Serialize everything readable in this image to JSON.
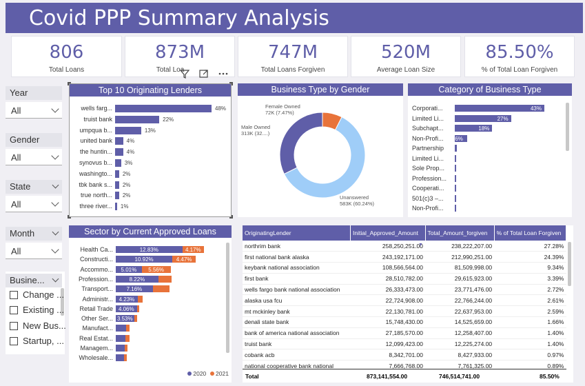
{
  "header": {
    "title": "Covid PPP Summary Analysis"
  },
  "kpis": [
    {
      "value": "806",
      "label": "Total Loans"
    },
    {
      "value": "873M",
      "label": "Total Loa"
    },
    {
      "value": "747M",
      "label": "Total Loans Forgiven"
    },
    {
      "value": "520M",
      "label": "Average Loan Size"
    },
    {
      "value": "85.50%",
      "label": "% of Total Loan Forgiven"
    }
  ],
  "slicers": {
    "year": {
      "title": "Year",
      "value": "All"
    },
    "gender": {
      "title": "Gender",
      "value": "All"
    },
    "state": {
      "title": "State",
      "value": "All"
    },
    "month": {
      "title": "Month",
      "value": "All"
    },
    "business": {
      "title": "Busine...",
      "options": [
        "Change ...",
        "Existing ...",
        "New Bus...",
        "Startup, ..."
      ]
    }
  },
  "visual_header": {
    "filter_icon": "filter-icon",
    "focus_icon": "focus-mode-icon",
    "more_icon": "more-options-icon"
  },
  "colors": {
    "primary": "#5f5ea8",
    "orange": "#e8733a",
    "light_blue": "#9fcdf8"
  },
  "charts": {
    "top_lenders": {
      "title": "Top 10 Originating Lenders",
      "chart_data": {
        "type": "bar",
        "categories": [
          "wells farg...",
          "truist bank",
          "umpqua b...",
          "united bank",
          "the huntin...",
          "synovus b...",
          "washingto...",
          "tbk bank s...",
          "true north...",
          "three river..."
        ],
        "values": [
          48,
          22,
          13,
          4,
          4,
          3,
          2,
          2,
          2,
          1
        ],
        "labels": [
          "48%",
          "22%",
          "13%",
          "4%",
          "4%",
          "3%",
          "2%",
          "2%",
          "2%",
          "1%"
        ]
      }
    },
    "gender_donut": {
      "title": "Business Type by Gender",
      "chart_data": {
        "type": "pie",
        "categories": [
          "Unanswered",
          "Male Owned",
          "Female Owned"
        ],
        "values": [
          60.24,
          32.29,
          7.47
        ],
        "labels": [
          [
            "Unanswered",
            "583K (60.24%)"
          ],
          [
            "Male Owned",
            "313K (32....)"
          ],
          [
            "Female Owned",
            "72K (7.47%)"
          ]
        ],
        "colors": [
          "#9fcdf8",
          "#5f5ea8",
          "#e8733a"
        ]
      }
    },
    "category": {
      "title": "Category of Business Type",
      "chart_data": {
        "type": "bar",
        "categories": [
          "Corporati...",
          "Limited Li...",
          "Subchapt...",
          "Non-Profi...",
          "Partnership",
          "Limited Li...",
          "Sole Prop...",
          "Profession...",
          "Cooperati...",
          "501(c)3 –...",
          "Non-Profi..."
        ],
        "values": [
          43,
          27,
          18,
          6,
          1,
          0.8,
          0.6,
          0.3,
          0.2,
          0.1,
          0.1
        ],
        "labels": [
          "43%",
          "27%",
          "18%",
          "6%",
          "",
          "",
          "",
          "",
          "",
          "",
          ""
        ]
      }
    },
    "sector": {
      "title": "Sector by Current Approved Loans",
      "chart_data": {
        "type": "bar",
        "categories": [
          "Health Ca...",
          "Constructi...",
          "Accommo...",
          "Profession...",
          "Transport...",
          "Administr...",
          "Retail Trade",
          "Other Ser...",
          "Manufact...",
          "Real Estat...",
          "Managem...",
          "Wholesale..."
        ],
        "series": [
          {
            "name": "2020",
            "values": [
              12.83,
              10.92,
              5.01,
              8.22,
              7.16,
              4.23,
              4.06,
              3.53,
              2.0,
              1.8,
              1.7,
              1.6
            ],
            "labels": [
              "12.83%",
              "10.92%",
              "5.01%",
              "8.22%",
              "7.16%",
              "4.23%",
              "4.06%",
              "3.53%",
              "",
              "",
              "",
              ""
            ]
          },
          {
            "name": "2021",
            "values": [
              4.17,
              4.47,
              5.56,
              2.5,
              3.2,
              1.0,
              0.5,
              0.6,
              0.7,
              0.8,
              0.6,
              0.5
            ],
            "labels": [
              "4.17%",
              "4.47%",
              "5.56%",
              "",
              "",
              "",
              "",
              "",
              "",
              "",
              "",
              ""
            ]
          }
        ],
        "legend": "bottom-right"
      }
    }
  },
  "table": {
    "columns": [
      "OriginatingLender",
      "Initial_Approved_Amount",
      "Total_Amount_forgiven",
      "% of Total Loan Forgiven"
    ],
    "rows": [
      [
        "northrim bank",
        "258,250,251.00",
        "238,222,207.00",
        "27.28%"
      ],
      [
        "first national bank alaska",
        "243,192,171.00",
        "212,990,251.00",
        "24.39%"
      ],
      [
        "keybank national association",
        "108,566,564.00",
        "81,509,998.00",
        "9.34%"
      ],
      [
        "first bank",
        "28,510,782.00",
        "29,615,923.00",
        "3.39%"
      ],
      [
        "wells fargo bank national association",
        "26,333,473.00",
        "23,771,476.00",
        "2.72%"
      ],
      [
        "alaska usa fcu",
        "22,724,908.00",
        "22,766,244.00",
        "2.61%"
      ],
      [
        "mt mckinley bank",
        "22,130,781.00",
        "22,637,953.00",
        "2.59%"
      ],
      [
        "denali state bank",
        "15,748,430.00",
        "14,525,659.00",
        "1.66%"
      ],
      [
        "bank of america national association",
        "27,185,570.00",
        "12,258,407.00",
        "1.40%"
      ],
      [
        "truist bank",
        "12,099,423.00",
        "12,225,274.00",
        "1.40%"
      ],
      [
        "cobank acb",
        "8,342,701.00",
        "8,427,933.00",
        "0.97%"
      ],
      [
        "national cooperative bank national",
        "7,666,768.00",
        "7,761,325.00",
        "0.89%"
      ]
    ],
    "total": [
      "Total",
      "873,141,554.00",
      "746,514,741.00",
      "85.50%"
    ]
  }
}
